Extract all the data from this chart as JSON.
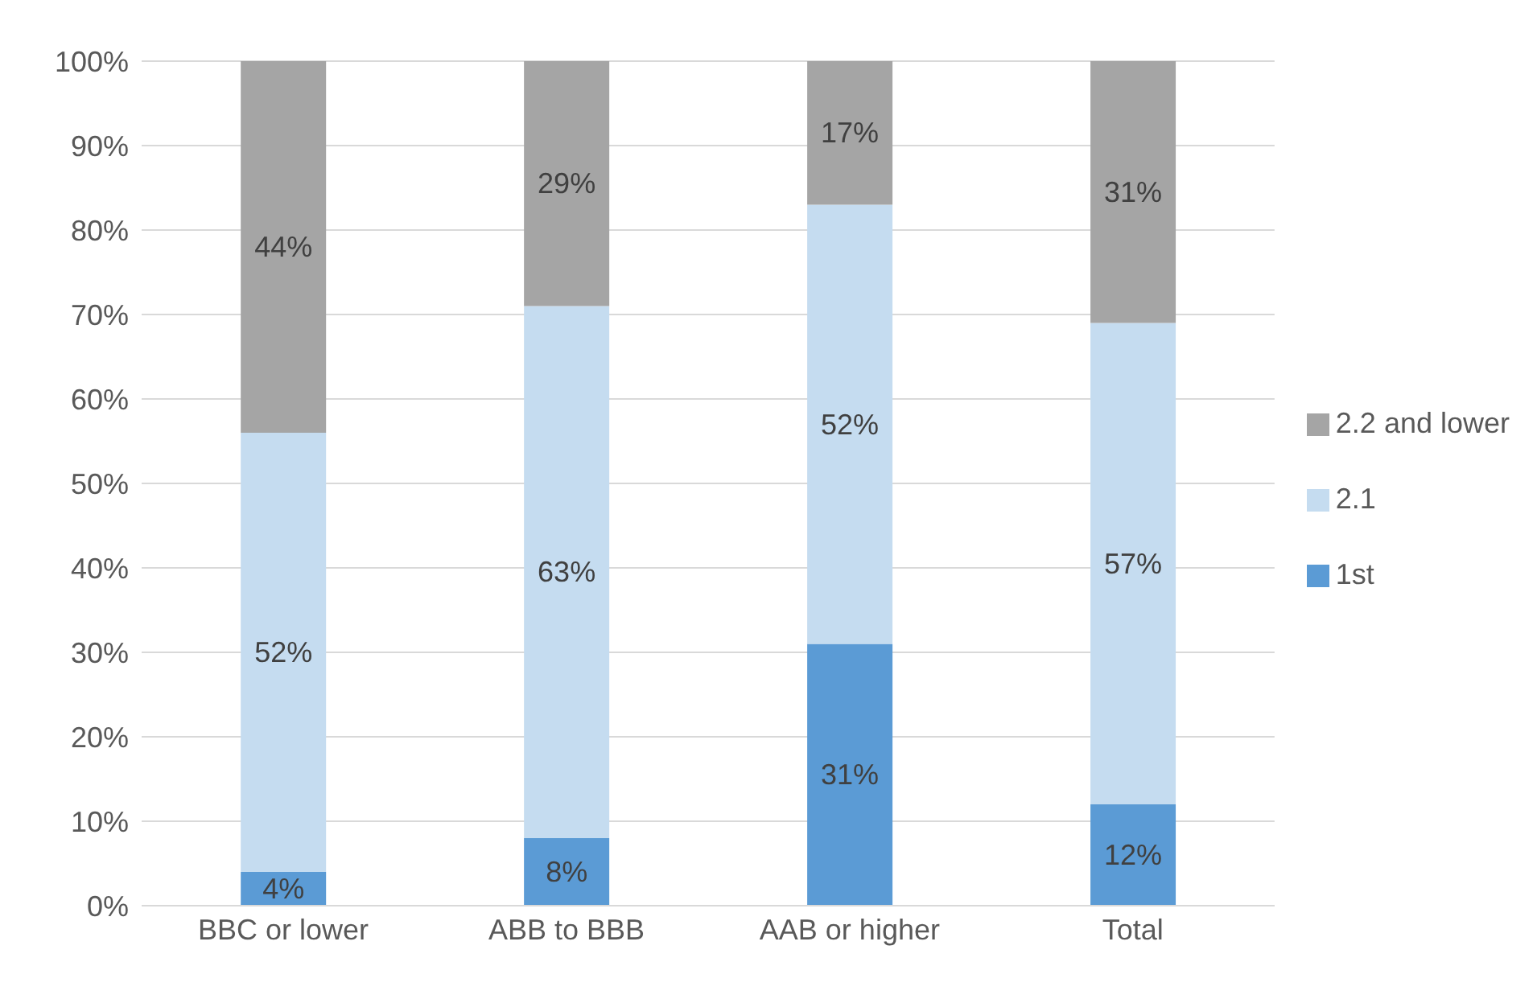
{
  "chart_data": {
    "type": "bar",
    "stacked": true,
    "categories": [
      "BBC or lower",
      "ABB to BBB",
      "AAB or higher",
      "Total"
    ],
    "series": [
      {
        "name": "1st",
        "color": "#5b9bd5",
        "values": [
          4,
          8,
          31,
          12
        ],
        "value_labels": [
          "4%",
          "8%",
          "31%",
          "12%"
        ]
      },
      {
        "name": "2.1",
        "color": "#c5dcf0",
        "values": [
          52,
          63,
          52,
          57
        ],
        "value_labels": [
          "52%",
          "63%",
          "52%",
          "57%"
        ]
      },
      {
        "name": "2.2 and lower",
        "color": "#a5a5a5",
        "values": [
          44,
          29,
          17,
          31
        ],
        "value_labels": [
          "44%",
          "29%",
          "17%",
          "31%"
        ]
      }
    ],
    "ylim": [
      0,
      100
    ],
    "yticks": [
      {
        "value": 0,
        "label": "0%"
      },
      {
        "value": 10,
        "label": "10%"
      },
      {
        "value": 20,
        "label": "20%"
      },
      {
        "value": 30,
        "label": "30%"
      },
      {
        "value": 40,
        "label": "40%"
      },
      {
        "value": 50,
        "label": "50%"
      },
      {
        "value": 60,
        "label": "60%"
      },
      {
        "value": 70,
        "label": "70%"
      },
      {
        "value": 80,
        "label": "80%"
      },
      {
        "value": 90,
        "label": "90%"
      },
      {
        "value": 100,
        "label": "100%"
      }
    ],
    "grid": "y",
    "legend": "right"
  }
}
